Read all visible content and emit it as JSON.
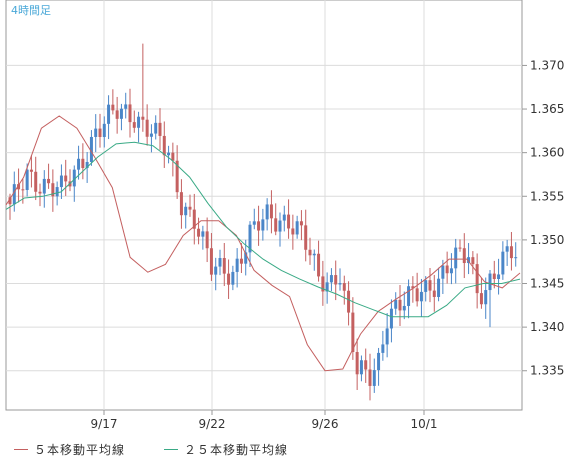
{
  "chart_data": {
    "type": "candlestick",
    "timeframe_label": "4時間足",
    "x_ticks": [
      "9/17",
      "9/22",
      "9/26",
      "10/1"
    ],
    "y_ticks": [
      1.335,
      1.34,
      1.345,
      1.35,
      1.355,
      1.36,
      1.365,
      1.37
    ],
    "y_tick_labels": [
      "1.335",
      "1.340",
      "1.345",
      "1.350",
      "1.355",
      "1.360",
      "1.365",
      "1.370"
    ],
    "ylim": [
      1.3305,
      1.3775
    ],
    "grid": true,
    "close_anchor_points": [
      [
        0,
        1.3535
      ],
      [
        4,
        1.3575
      ],
      [
        8,
        1.3565
      ],
      [
        12,
        1.3555
      ],
      [
        15,
        1.3575
      ],
      [
        20,
        1.3625
      ],
      [
        25,
        1.3645
      ],
      [
        29,
        1.3645
      ],
      [
        33,
        1.3625
      ],
      [
        37,
        1.3595
      ],
      [
        40,
        1.3545
      ],
      [
        43,
        1.3525
      ],
      [
        47,
        1.3465
      ],
      [
        52,
        1.3465
      ],
      [
        56,
        1.3505
      ],
      [
        60,
        1.3525
      ],
      [
        65,
        1.3525
      ],
      [
        68,
        1.3505
      ],
      [
        72,
        1.3455
      ],
      [
        75,
        1.3455
      ],
      [
        77,
        1.3465
      ],
      [
        79,
        1.3405
      ],
      [
        81,
        1.3345
      ],
      [
        84,
        1.3345
      ],
      [
        86,
        1.3365
      ],
      [
        88,
        1.3415
      ],
      [
        92,
        1.3425
      ],
      [
        96,
        1.3445
      ],
      [
        100,
        1.3455
      ],
      [
        104,
        1.3475
      ],
      [
        107,
        1.3485
      ],
      [
        109,
        1.3445
      ],
      [
        111,
        1.3445
      ],
      [
        114,
        1.3465
      ],
      [
        117,
        1.3485
      ]
    ],
    "series": [
      {
        "name": "５本移動平均線",
        "color": "#c46060",
        "values": [
          1.354,
          1.3572,
          1.3628,
          1.3642,
          1.3628,
          1.3595,
          1.356,
          1.348,
          1.3463,
          1.3472,
          1.3505,
          1.3522,
          1.3522,
          1.3505,
          1.3465,
          1.3448,
          1.3435,
          1.338,
          1.335,
          1.3352,
          1.3392,
          1.3418,
          1.3432,
          1.3445,
          1.346,
          1.3478,
          1.3478,
          1.3452,
          1.3445,
          1.3462
        ]
      },
      {
        "name": "２５本移動平均線",
        "color": "#3aaa86",
        "values": [
          1.3535,
          1.3548,
          1.355,
          1.3555,
          1.3575,
          1.3595,
          1.361,
          1.3612,
          1.3608,
          1.3592,
          1.3572,
          1.3542,
          1.3515,
          1.3495,
          1.3478,
          1.3465,
          1.3455,
          1.3446,
          1.3438,
          1.3428,
          1.342,
          1.3412,
          1.3412,
          1.3412,
          1.3425,
          1.3445,
          1.345,
          1.345,
          1.3455
        ]
      }
    ]
  },
  "colors": {
    "up": "#4a86c8",
    "down": "#c46060",
    "grid": "#dcdcdc",
    "axis": "#999999",
    "label": "#333333",
    "title": "#4aa8d8"
  }
}
